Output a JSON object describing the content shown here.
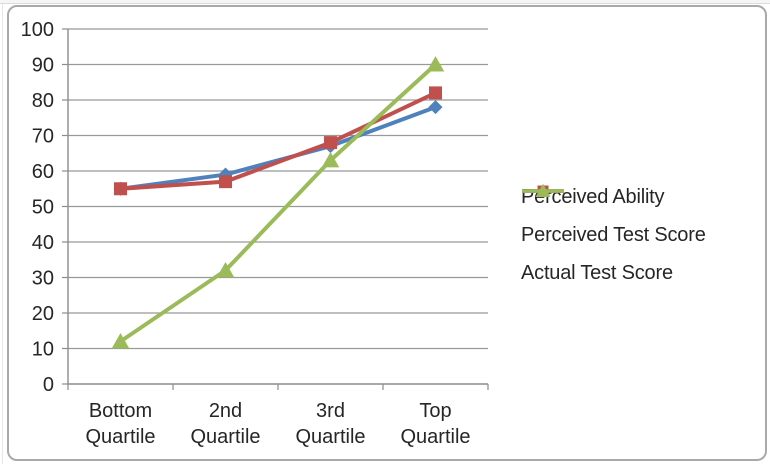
{
  "chart_data": {
    "type": "line",
    "title": "",
    "xlabel": "",
    "ylabel": "",
    "categories": [
      "Bottom Quartile",
      "2nd Quartile",
      "3rd Quartile",
      "Top Quartile"
    ],
    "series": [
      {
        "name": "Perceived Ability",
        "color": "#4F81BD",
        "marker": "diamond",
        "values": [
          55,
          59,
          67,
          78
        ]
      },
      {
        "name": "Perceived Test Score",
        "color": "#C0504D",
        "marker": "square",
        "values": [
          55,
          57,
          68,
          82
        ]
      },
      {
        "name": "Actual Test Score",
        "color": "#9BBB59",
        "marker": "triangle",
        "values": [
          12,
          32,
          63,
          90
        ]
      }
    ],
    "ylim": [
      0,
      100
    ],
    "yticks": [
      0,
      10,
      20,
      30,
      40,
      50,
      60,
      70,
      80,
      90,
      100
    ],
    "grid": "horizontal-major",
    "legend_position": "right-middle"
  },
  "colors": {
    "grid": "#999999",
    "axis": "#8c8c8c",
    "tick_text": "#262626",
    "frame_border": "#a9a9a9",
    "background": "#ffffff"
  }
}
